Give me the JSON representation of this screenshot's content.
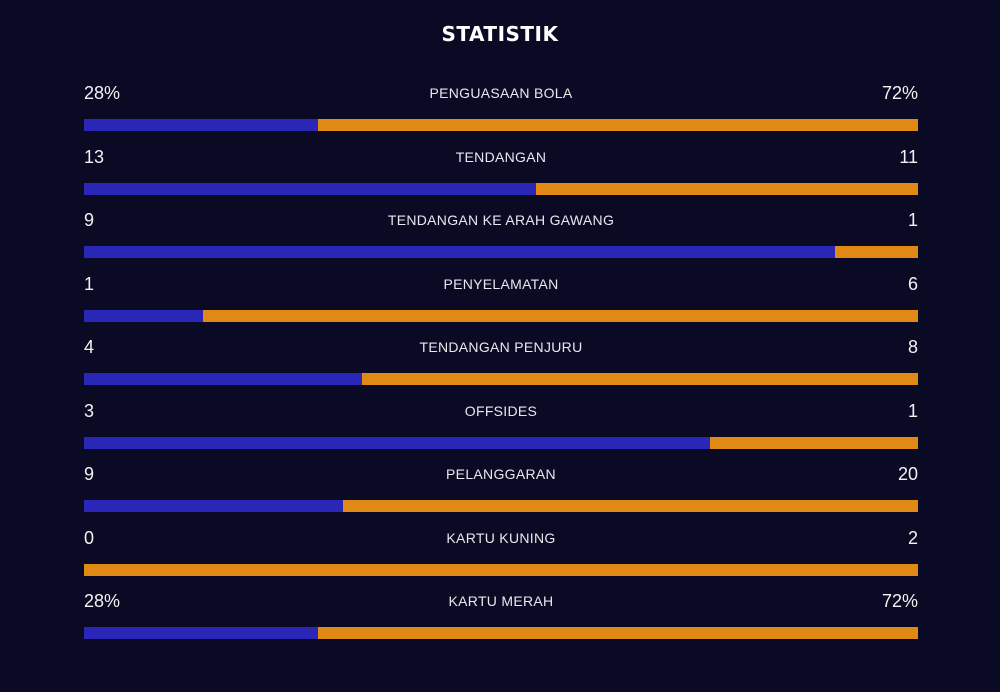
{
  "title": "STATISTIK",
  "colors": {
    "background": "#0b0a24",
    "home": "#2a27b8",
    "away": "#e08a15"
  },
  "stats": [
    {
      "label": "PENGUASAAN BOLA",
      "left": "28%",
      "right": "72%",
      "left_share": 0.28
    },
    {
      "label": "TENDANGAN",
      "left": "13",
      "right": "11",
      "left_share": 0.542
    },
    {
      "label": "TENDANGAN KE ARAH GAWANG",
      "left": "9",
      "right": "1",
      "left_share": 0.9
    },
    {
      "label": "PENYELAMATAN",
      "left": "1",
      "right": "6",
      "left_share": 0.143
    },
    {
      "label": "TENDANGAN PENJURU",
      "left": "4",
      "right": "8",
      "left_share": 0.333
    },
    {
      "label": "OFFSIDES",
      "left": "3",
      "right": "1",
      "left_share": 0.75
    },
    {
      "label": "PELANGGARAN",
      "left": "9",
      "right": "20",
      "left_share": 0.31
    },
    {
      "label": "KARTU KUNING",
      "left": "0",
      "right": "2",
      "left_share": 0
    },
    {
      "label": "KARTU MERAH",
      "left": "28%",
      "right": "72%",
      "left_share": 0.28
    }
  ]
}
